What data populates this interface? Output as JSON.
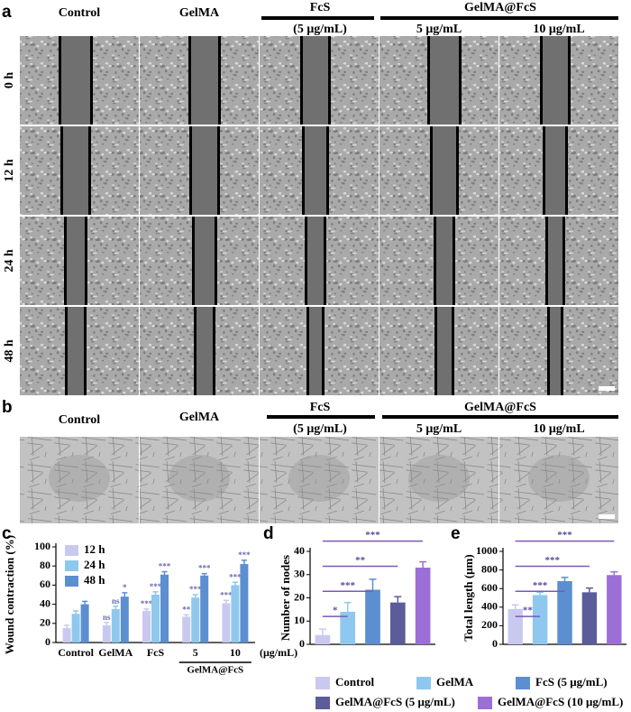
{
  "panel_a": {
    "letter": "a",
    "headers": {
      "control": "Control",
      "gelma": "GelMA",
      "fcs": "FcS",
      "fcs_dose": "(5 μg/mL)",
      "combo": "GelMA@FcS",
      "dose5": "5 μg/mL",
      "dose10": "10 μg/mL"
    },
    "rows": [
      "0 h",
      "12 h",
      "24 h",
      "48 h"
    ]
  },
  "panel_b": {
    "letter": "b",
    "headers": {
      "control": "Control",
      "gelma": "GelMA",
      "fcs": "FcS",
      "fcs_dose": "(5 μg/mL)",
      "combo": "GelMA@FcS",
      "dose5": "5 μg/mL",
      "dose10": "10 μg/mL"
    }
  },
  "chart_data": [
    {
      "type": "grouped_bar",
      "letter": "c",
      "ylabel": "Wound contraction (%)",
      "categories": [
        "Control",
        "GelMA",
        "FcS",
        "5",
        "10"
      ],
      "group_label": "GelMA@FcS",
      "unit_label": "(μg/mL)",
      "ylim": [
        0,
        100
      ],
      "yticks": [
        0,
        20,
        40,
        60,
        80,
        100
      ],
      "legend": "upper left",
      "series": [
        {
          "name": "12 h",
          "color": "#c9c9f0",
          "values": [
            15,
            18,
            33,
            27,
            41
          ],
          "errors": [
            3,
            3,
            2,
            2,
            3
          ],
          "significance": [
            null,
            "ns",
            "***",
            "**",
            "***"
          ]
        },
        {
          "name": "24 h",
          "color": "#8ec8ee",
          "values": [
            30,
            35,
            50,
            47,
            60
          ],
          "errors": [
            3,
            3,
            3,
            3,
            3
          ],
          "significance": [
            null,
            "ns",
            "***",
            "***",
            "***"
          ]
        },
        {
          "name": "48 h",
          "color": "#5b8fd0",
          "values": [
            40,
            48,
            71,
            70,
            82
          ],
          "errors": [
            3,
            4,
            3,
            2,
            4
          ],
          "significance": [
            null,
            "*",
            "***",
            "***",
            "***"
          ]
        }
      ]
    },
    {
      "type": "bar",
      "letter": "d",
      "ylabel": "Number of nodes",
      "categories": [
        "Control",
        "GelMA",
        "FcS (5 μg/mL)",
        "GelMA@FcS (5 μg/mL)",
        "GelMA@FcS (10 μg/mL)"
      ],
      "colors": [
        "#c9c9f0",
        "#8ec8ee",
        "#5b8fd0",
        "#5c5c9a",
        "#9b6fd6"
      ],
      "values": [
        4,
        14,
        23.5,
        18,
        33
      ],
      "errors": [
        2.5,
        4,
        4.5,
        2.5,
        2.5
      ],
      "ylim": [
        0,
        40
      ],
      "yticks": [
        0,
        10,
        20,
        30,
        40
      ],
      "brackets": [
        {
          "from": 0,
          "to": 1,
          "label": "*"
        },
        {
          "from": 0,
          "to": 2,
          "label": "***"
        },
        {
          "from": 0,
          "to": 3,
          "label": "**"
        },
        {
          "from": 0,
          "to": 4,
          "label": "***"
        }
      ]
    },
    {
      "type": "bar",
      "letter": "e",
      "ylabel": "Total length (μm)",
      "colors": [
        "#c9c9f0",
        "#8ec8ee",
        "#5b8fd0",
        "#5c5c9a",
        "#9b6fd6"
      ],
      "values": [
        380,
        530,
        680,
        560,
        745
      ],
      "errors": [
        45,
        30,
        40,
        45,
        35
      ],
      "ylim": [
        0,
        1000
      ],
      "yticks": [
        0,
        200,
        400,
        600,
        800,
        1000
      ],
      "brackets": [
        {
          "from": 0,
          "to": 1,
          "label": "**"
        },
        {
          "from": 0,
          "to": 2,
          "label": "***"
        },
        {
          "from": 0,
          "to": 3,
          "label": "***"
        },
        {
          "from": 0,
          "to": 4,
          "label": "***"
        }
      ]
    }
  ]
}
